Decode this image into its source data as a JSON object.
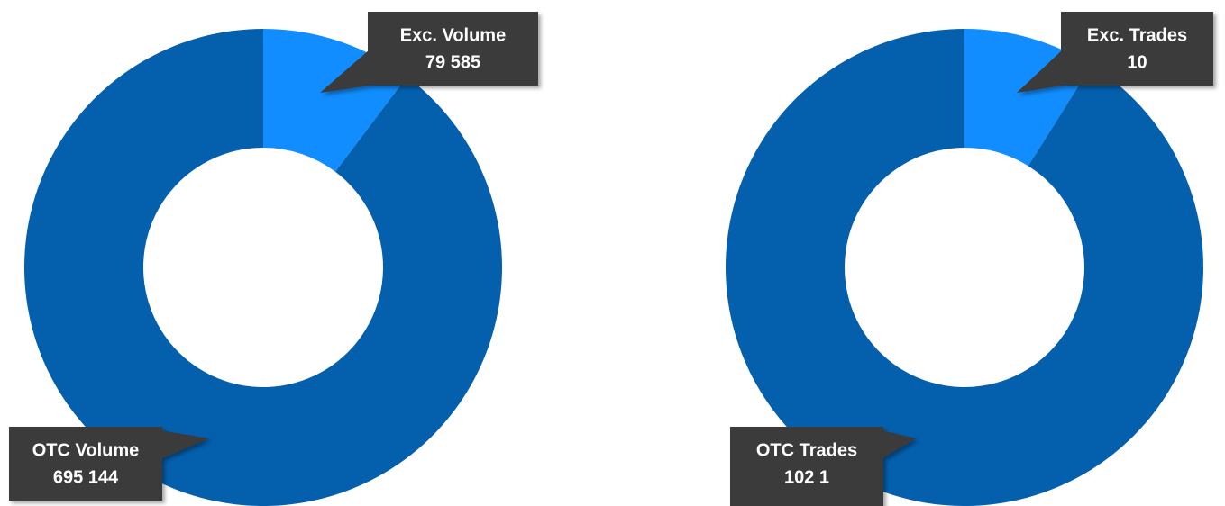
{
  "chart_data": [
    {
      "type": "donut",
      "categories": [
        "Exc. Volume",
        "OTC Volume"
      ],
      "values": [
        79585,
        695144
      ],
      "value_labels": [
        "79 585",
        "695 144"
      ],
      "colors": [
        "#118dff",
        "#045fad"
      ]
    },
    {
      "type": "donut",
      "categories": [
        "Exc. Trades",
        "OTC Trades"
      ],
      "values": [
        10,
        102.1
      ],
      "value_labels": [
        "10",
        "102 1"
      ],
      "colors": [
        "#118dff",
        "#045fad"
      ]
    }
  ]
}
